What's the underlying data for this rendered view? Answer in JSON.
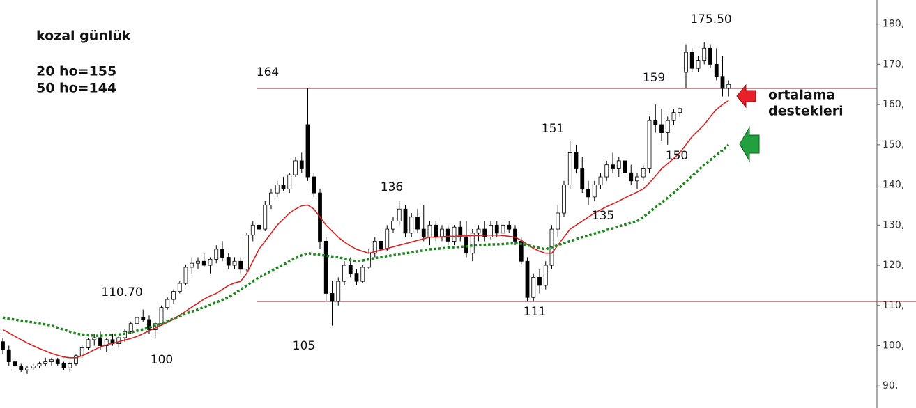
{
  "chart_data": {
    "type": "candlestick",
    "ylim": [
      84.5,
      186
    ],
    "yticks": [
      {
        "value": 90,
        "label": "90,"
      },
      {
        "value": 100,
        "label": "100,"
      },
      {
        "value": 110,
        "label": "110,"
      },
      {
        "value": 120,
        "label": "120,"
      },
      {
        "value": 130,
        "label": "130,"
      },
      {
        "value": 140,
        "label": "140,"
      },
      {
        "value": 150,
        "label": "150,"
      },
      {
        "value": 160,
        "label": "160,"
      },
      {
        "value": 170,
        "label": "170,"
      },
      {
        "value": 180,
        "label": "180,"
      }
    ],
    "hlines": [
      164,
      111
    ],
    "hline_color": "#8b1a2a",
    "ohlc": [
      [
        101,
        102,
        98,
        99
      ],
      [
        99,
        100,
        95,
        96
      ],
      [
        96,
        97,
        94,
        95
      ],
      [
        95,
        95.5,
        93.5,
        94
      ],
      [
        94,
        95,
        93,
        94.5
      ],
      [
        94.5,
        95.5,
        94,
        95
      ],
      [
        95,
        96,
        94.5,
        95.5
      ],
      [
        95.5,
        97,
        95,
        96
      ],
      [
        96,
        97,
        95,
        96.5
      ],
      [
        96.5,
        97,
        95,
        95.5
      ],
      [
        95.5,
        96,
        94,
        94.5
      ],
      [
        94.5,
        96,
        93.5,
        95.5
      ],
      [
        95.5,
        98,
        95,
        97.5
      ],
      [
        97.5,
        100,
        97,
        99.5
      ],
      [
        99.5,
        102,
        99,
        101.5
      ],
      [
        101.5,
        103,
        100,
        102
      ],
      [
        102,
        103.5,
        99,
        100
      ],
      [
        100,
        102,
        98.5,
        101.5
      ],
      [
        101.5,
        103,
        100,
        100.5
      ],
      [
        100.5,
        102.5,
        99.5,
        102
      ],
      [
        102,
        104,
        101,
        103.5
      ],
      [
        103.5,
        106,
        103,
        105.5
      ],
      [
        105.5,
        108,
        104,
        107
      ],
      [
        107,
        109,
        106,
        106.5
      ],
      [
        106.5,
        107.5,
        103,
        104
      ],
      [
        104,
        106,
        102,
        105.5
      ],
      [
        105.5,
        110,
        105,
        109.5
      ],
      [
        109.5,
        112,
        109,
        111.5
      ],
      [
        111.5,
        114,
        110.5,
        113.5
      ],
      [
        113.5,
        116,
        113,
        115.5
      ],
      [
        115.5,
        120,
        115,
        119.5
      ],
      [
        119.5,
        122,
        118,
        120.5
      ],
      [
        120.5,
        122,
        119,
        121
      ],
      [
        121,
        123,
        119.5,
        120
      ],
      [
        120,
        122,
        118,
        121.5
      ],
      [
        121.5,
        125,
        120.5,
        124
      ],
      [
        124,
        126,
        121,
        122
      ],
      [
        122,
        123,
        119,
        120
      ],
      [
        120,
        122,
        119,
        121
      ],
      [
        121,
        122,
        118,
        119
      ],
      [
        119,
        128,
        118.5,
        127.5
      ],
      [
        127.5,
        131,
        126,
        130
      ],
      [
        130,
        132,
        128,
        129
      ],
      [
        129,
        136,
        128.5,
        135
      ],
      [
        135,
        139,
        134,
        138
      ],
      [
        138,
        141,
        137,
        140
      ],
      [
        140,
        142,
        138.5,
        139
      ],
      [
        139,
        143,
        138,
        142.5
      ],
      [
        142.5,
        147,
        142,
        146
      ],
      [
        146,
        148,
        143,
        144
      ],
      [
        155,
        164,
        141,
        142
      ],
      [
        142,
        143,
        137,
        138
      ],
      [
        138,
        139,
        124,
        126
      ],
      [
        126,
        127,
        111,
        113
      ],
      [
        113,
        116,
        105,
        111
      ],
      [
        111,
        117,
        110,
        116
      ],
      [
        116,
        121,
        115,
        120
      ],
      [
        120,
        122,
        117,
        118
      ],
      [
        118,
        119,
        115,
        116
      ],
      [
        116,
        120,
        115.5,
        119.5
      ],
      [
        119.5,
        124,
        119,
        123
      ],
      [
        123,
        127,
        122,
        126
      ],
      [
        126,
        128,
        123,
        124
      ],
      [
        124,
        130,
        123.5,
        129
      ],
      [
        129,
        132,
        128,
        131
      ],
      [
        131,
        136,
        130,
        134
      ],
      [
        134,
        135,
        127,
        128
      ],
      [
        128,
        133,
        127,
        132
      ],
      [
        132,
        134,
        128,
        129
      ],
      [
        129,
        135,
        126,
        127
      ],
      [
        127,
        131,
        125,
        130
      ],
      [
        130,
        131,
        126,
        127
      ],
      [
        127,
        130,
        126,
        129
      ],
      [
        129,
        130,
        125,
        126
      ],
      [
        126,
        130,
        125,
        129.5
      ],
      [
        129.5,
        131,
        126,
        127
      ],
      [
        127,
        131,
        122,
        123
      ],
      [
        123,
        129,
        121,
        128
      ],
      [
        128,
        130,
        126,
        129
      ],
      [
        129,
        131,
        126,
        127
      ],
      [
        127,
        131,
        126.5,
        130
      ],
      [
        130,
        131,
        127,
        128
      ],
      [
        128,
        131,
        127,
        130
      ],
      [
        130,
        131,
        128,
        129
      ],
      [
        129,
        130,
        125,
        126
      ],
      [
        126,
        127,
        120,
        121
      ],
      [
        121,
        122,
        111,
        112
      ],
      [
        112,
        118,
        111,
        117
      ],
      [
        117,
        119,
        113,
        115
      ],
      [
        115,
        121,
        114,
        120
      ],
      [
        120,
        130,
        119,
        129
      ],
      [
        129,
        135,
        127,
        133
      ],
      [
        133,
        141,
        132,
        140
      ],
      [
        140,
        151,
        139,
        148
      ],
      [
        148,
        150,
        143,
        144
      ],
      [
        144,
        147,
        138,
        139
      ],
      [
        139,
        141,
        135,
        137
      ],
      [
        137,
        141,
        136,
        140
      ],
      [
        140,
        143,
        139,
        142
      ],
      [
        142,
        146,
        141,
        145
      ],
      [
        145,
        148,
        143,
        144
      ],
      [
        144,
        147,
        142,
        146
      ],
      [
        146,
        147,
        142,
        143
      ],
      [
        143,
        145,
        140,
        141
      ],
      [
        141,
        143,
        139,
        142
      ],
      [
        142,
        145,
        141,
        144
      ],
      [
        144,
        157,
        143,
        156
      ],
      [
        156,
        160,
        153,
        155
      ],
      [
        155,
        159,
        151,
        153
      ],
      [
        153,
        157,
        150,
        156
      ],
      [
        156,
        159,
        155,
        158
      ],
      [
        158,
        159.5,
        157,
        159
      ],
      [
        168,
        175,
        164,
        173
      ],
      [
        173,
        174,
        168,
        169
      ],
      [
        169,
        172,
        168,
        171
      ],
      [
        171,
        175.5,
        170,
        174
      ],
      [
        174,
        175,
        169,
        170
      ],
      [
        170,
        174,
        166,
        167
      ],
      [
        167,
        172,
        162,
        164
      ],
      [
        164,
        166,
        162,
        165
      ]
    ],
    "lines": [
      {
        "color": "#e02020",
        "dashed": false,
        "values": [
          104,
          103.2,
          102.3,
          101.5,
          100.7,
          100,
          99.3,
          98.7,
          98.1,
          97.6,
          97.2,
          97,
          97,
          97.5,
          98.2,
          99,
          99.7,
          100.2,
          100.6,
          101,
          101.4,
          101.8,
          102.3,
          103,
          103.7,
          104.4,
          105.1,
          105.8,
          106.6,
          107.6,
          108.6,
          109.6,
          110.6,
          111.6,
          112.4,
          113,
          114,
          115,
          115.6,
          116,
          118,
          121,
          124,
          126,
          128,
          130,
          131.5,
          133,
          134,
          134.8,
          135,
          134,
          132,
          130,
          128.5,
          127,
          125.8,
          124.8,
          124,
          123.5,
          123,
          123.4,
          123.8,
          124.2,
          124.6,
          125,
          125.4,
          125.8,
          126.2,
          126.6,
          127,
          127,
          127.1,
          127.2,
          127.2,
          127.3,
          127.3,
          127.4,
          127.4,
          127.5,
          127.5,
          127.5,
          127.4,
          127.2,
          127,
          126.2,
          125.2,
          124.2,
          123.5,
          123,
          123,
          125,
          127,
          129,
          130,
          131,
          132,
          133,
          133.8,
          134.6,
          135.3,
          136,
          136.8,
          137.5,
          138.2,
          139,
          140.5,
          142.2,
          144,
          145.3,
          146.6,
          148,
          150,
          152,
          153.5,
          155,
          157,
          158.8,
          160,
          161
        ]
      },
      {
        "color": "#1a8a1a",
        "dashed": true,
        "values": [
          107,
          106.7,
          106.5,
          106.2,
          106,
          105.8,
          105.5,
          105.3,
          105,
          104.5,
          104,
          103.5,
          103,
          102.8,
          102.6,
          102.5,
          102.5,
          102.6,
          102.7,
          102.8,
          103,
          103.3,
          103.7,
          104.1,
          104.5,
          105,
          105.5,
          106.1,
          106.7,
          107.3,
          108,
          108.5,
          109,
          109.6,
          110.2,
          110.8,
          111.4,
          112,
          113,
          114,
          115,
          116,
          117,
          117.8,
          118.6,
          119.4,
          120.2,
          121,
          121.8,
          122.5,
          123,
          122.8,
          122.6,
          122.4,
          122.2,
          122,
          121.6,
          121.3,
          121,
          121.2,
          121.5,
          121.8,
          122,
          122.3,
          122.5,
          122.8,
          123,
          123.2,
          123.5,
          123.7,
          124,
          124.1,
          124.2,
          124.4,
          124.5,
          124.6,
          124.7,
          124.9,
          125,
          125.1,
          125.2,
          125.2,
          125.3,
          125.4,
          125.5,
          125.3,
          125,
          124.7,
          124.3,
          124,
          124.5,
          125,
          125.5,
          126,
          126.5,
          127,
          127.4,
          127.9,
          128.3,
          128.8,
          129.2,
          129.7,
          130.1,
          130.6,
          131,
          132,
          133.2,
          134.4,
          135.6,
          136.8,
          138,
          139.4,
          140.8,
          142.2,
          143.6,
          145,
          146.2,
          147.4,
          148.6,
          150
        ]
      }
    ],
    "annotations": [
      "kozal günlük",
      "20 ho=155",
      "50 ho=144",
      "164",
      "110.70",
      "100",
      "105",
      "136",
      "111",
      "151",
      "135",
      "150",
      "159",
      "175.50",
      "ortalama",
      "destekleri"
    ]
  }
}
